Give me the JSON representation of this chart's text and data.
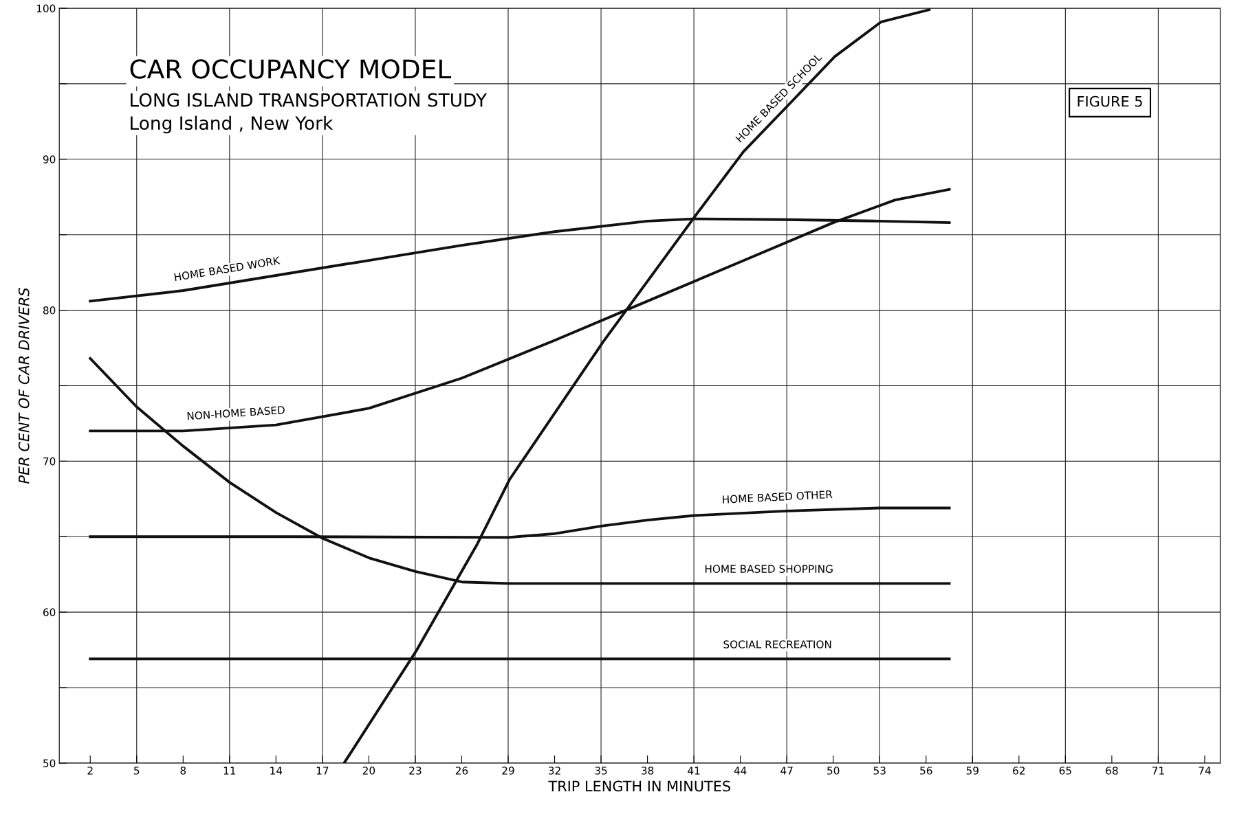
{
  "chart_data": {
    "type": "line",
    "title": "CAR OCCUPANCY MODEL",
    "subtitle": "LONG ISLAND TRANSPORTATION STUDY\nLong Island , New York",
    "xlabel": "TRIP LENGTH IN MINUTES",
    "ylabel": "PER CENT OF CAR DRIVERS",
    "xlim": [
      0,
      75
    ],
    "xticks": [
      2,
      5,
      8,
      11,
      14,
      17,
      20,
      23,
      26,
      29,
      32,
      35,
      38,
      41,
      44,
      47,
      50,
      53,
      56,
      59,
      62,
      65,
      68,
      71,
      74
    ],
    "ylim": [
      50,
      100
    ],
    "yticks": [
      50,
      {
        "value": 55,
        "label": null
      },
      60,
      {
        "value": 65,
        "label": null
      },
      70,
      {
        "value": 75,
        "label": null
      },
      80,
      {
        "value": 85,
        "label": null
      },
      90,
      {
        "value": 95,
        "label": null
      },
      100
    ],
    "grid": true,
    "legend": false,
    "marker": "none",
    "line_style": "solid",
    "series": [
      {
        "name": "HOME BASED WORK",
        "color": "#111111",
        "x": [
          2,
          8,
          14,
          20,
          26,
          32,
          38,
          41,
          47,
          53,
          57.5
        ],
        "values": [
          80.6,
          81.3,
          82.3,
          83.3,
          84.3,
          85.2,
          85.9,
          86.05,
          86.0,
          85.9,
          85.8
        ]
      },
      {
        "name": "NON-HOME BASED",
        "color": "#111111",
        "x": [
          2,
          8,
          14,
          20,
          26,
          32,
          38,
          44,
          50,
          54,
          57.5
        ],
        "values": [
          72.0,
          72.0,
          72.4,
          73.5,
          75.5,
          78.0,
          80.6,
          83.2,
          85.8,
          87.3,
          88.0
        ]
      },
      {
        "name": "HOME BASED SCHOOL",
        "color": "#111111",
        "x": [
          18.4,
          23.1,
          27,
          29.1,
          35.2,
          41.2,
          44.2,
          47.3,
          50.1,
          53.1,
          56.2
        ],
        "values": [
          50,
          57.5,
          64.5,
          68.8,
          78.0,
          86.4,
          90.5,
          93.8,
          96.8,
          99.1,
          99.9
        ]
      },
      {
        "name": "HOME BASED SHOPPING",
        "color": "#111111",
        "x": [
          2,
          5,
          8,
          11,
          14,
          17,
          20,
          23,
          26,
          29,
          35,
          45,
          57.5
        ],
        "values": [
          76.8,
          73.6,
          71.0,
          68.6,
          66.6,
          64.9,
          63.6,
          62.7,
          62.0,
          61.9,
          61.9,
          61.9,
          61.9
        ]
      },
      {
        "name": "HOME BASED OTHER",
        "color": "#111111",
        "x": [
          2,
          15,
          29,
          32,
          35,
          38,
          41,
          47,
          53,
          57.5
        ],
        "values": [
          65.0,
          65.0,
          64.95,
          65.2,
          65.7,
          66.1,
          66.4,
          66.7,
          66.9,
          66.9
        ]
      },
      {
        "name": "SOCIAL RECREATION",
        "color": "#111111",
        "x": [
          2,
          30,
          57.5
        ],
        "values": [
          56.9,
          56.9,
          56.9
        ]
      }
    ],
    "annotations": [
      "FIGURE 5"
    ]
  }
}
